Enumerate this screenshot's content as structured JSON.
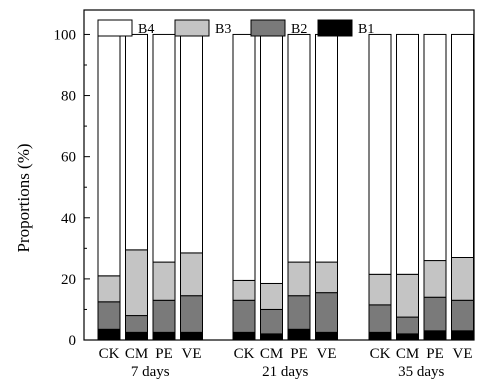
{
  "chart_data": {
    "type": "bar",
    "stacked": true,
    "title": "",
    "ylabel": "Proportions (%)",
    "xlabel": "",
    "ylim": [
      0,
      108
    ],
    "yticks": [
      0,
      20,
      40,
      60,
      80,
      100
    ],
    "grid": false,
    "legend": {
      "position": "top",
      "entries": [
        "B4",
        "B3",
        "B2",
        "B1"
      ]
    },
    "groups": [
      {
        "label": "7 days",
        "categories": [
          "CK",
          "CM",
          "PE",
          "VE"
        ]
      },
      {
        "label": "21 days",
        "categories": [
          "CK",
          "CM",
          "PE",
          "VE"
        ]
      },
      {
        "label": "35 days",
        "categories": [
          "CK",
          "CM",
          "PE",
          "VE"
        ]
      }
    ],
    "series": [
      {
        "name": "B1",
        "color": "#000000",
        "values": [
          3.5,
          2.5,
          2.5,
          2.5,
          2.5,
          2.0,
          3.5,
          2.5,
          2.5,
          2.0,
          3.0,
          3.0
        ]
      },
      {
        "name": "B2",
        "color": "#7a7a7a",
        "values": [
          9.0,
          5.5,
          10.5,
          12.0,
          10.5,
          8.0,
          11.0,
          13.0,
          9.0,
          5.5,
          11.0,
          10.0
        ]
      },
      {
        "name": "B3",
        "color": "#c4c4c4",
        "values": [
          8.5,
          21.5,
          12.5,
          14.0,
          6.5,
          8.5,
          11.0,
          10.0,
          10.0,
          14.0,
          12.0,
          14.0
        ]
      },
      {
        "name": "B4",
        "color": "#ffffff",
        "values": [
          79.0,
          70.5,
          74.5,
          71.5,
          80.5,
          81.5,
          74.5,
          74.5,
          78.5,
          78.5,
          74.0,
          73.0
        ]
      }
    ]
  }
}
